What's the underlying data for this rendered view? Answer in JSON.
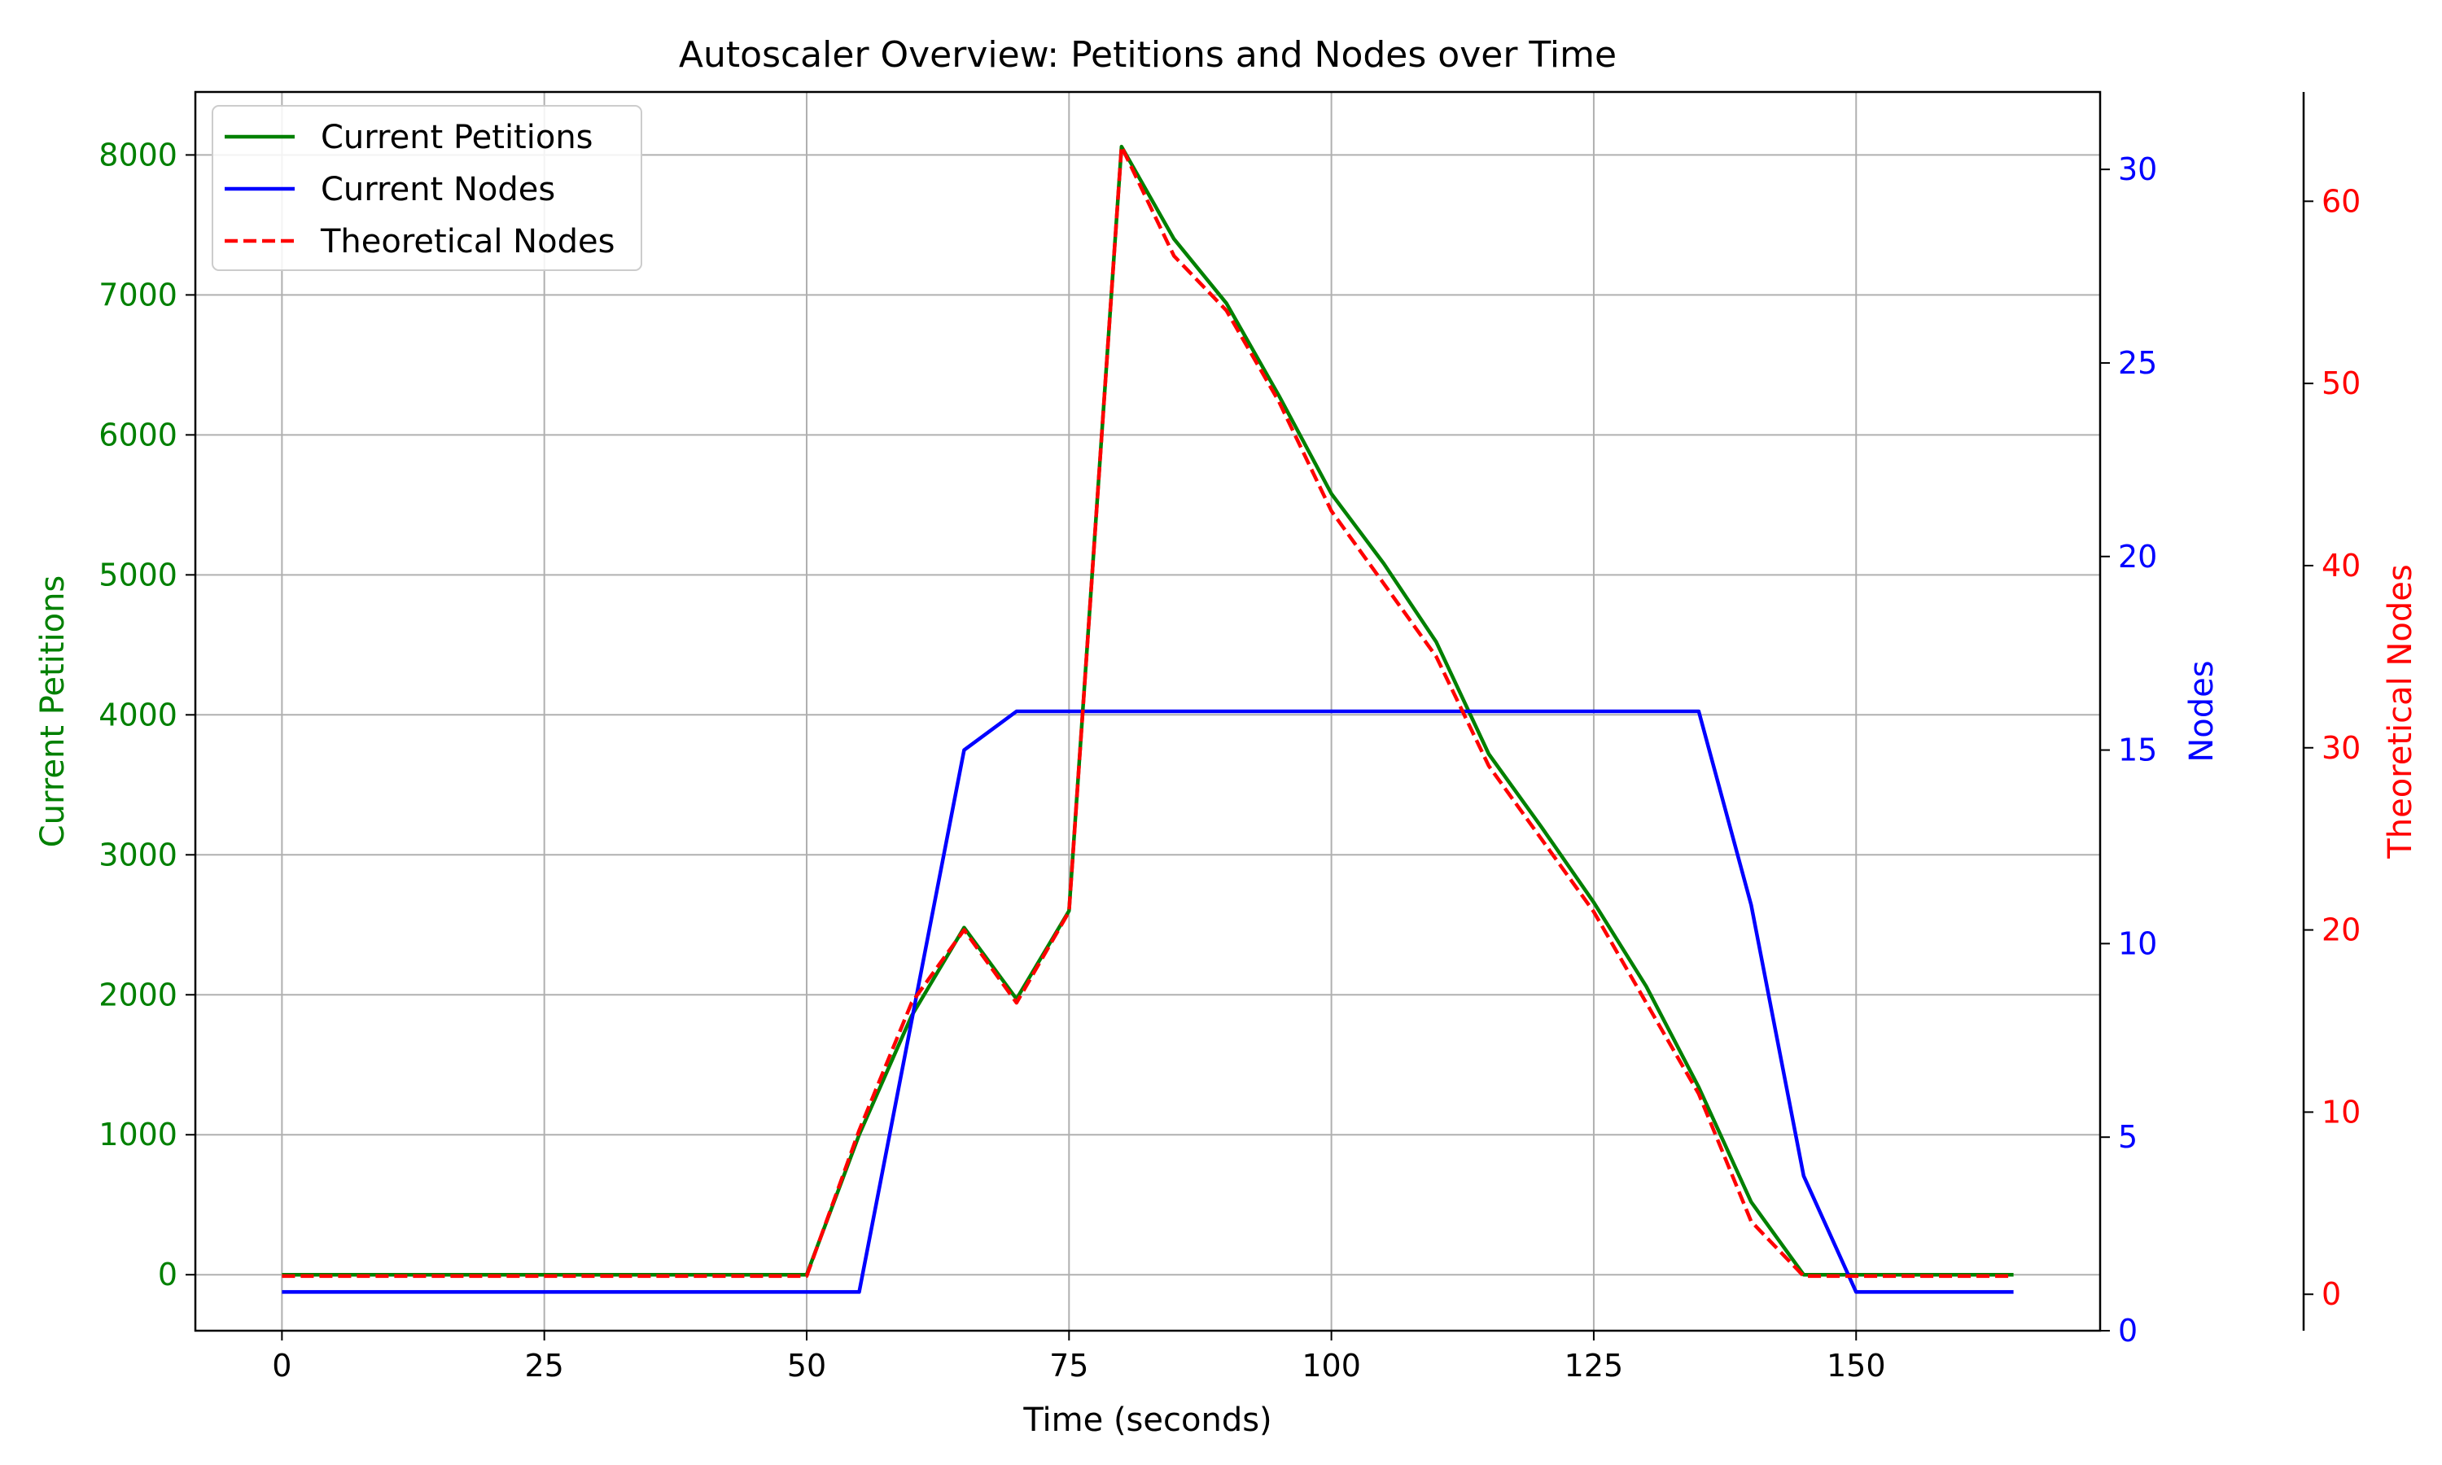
{
  "chart_data": {
    "type": "line",
    "title": "Autoscaler Overview: Petitions and Nodes over Time",
    "xlabel": "Time (seconds)",
    "xlim": [
      -8.25,
      173.25
    ],
    "xticks": [
      0,
      25,
      50,
      75,
      100,
      125,
      150
    ],
    "x": [
      0,
      5,
      10,
      15,
      20,
      25,
      30,
      35,
      40,
      45,
      50,
      55,
      60,
      65,
      70,
      75,
      80,
      85,
      90,
      95,
      100,
      105,
      110,
      115,
      120,
      125,
      130,
      135,
      140,
      145,
      150,
      155,
      160,
      165
    ],
    "grid": true,
    "legend": {
      "placement": "top-left"
    },
    "axes": [
      {
        "id": "petitions",
        "label": "Current Petitions",
        "color": "#008000",
        "side": "left",
        "ylim": [
          -400,
          8450
        ],
        "ticks": [
          0,
          1000,
          2000,
          3000,
          4000,
          5000,
          6000,
          7000,
          8000
        ]
      },
      {
        "id": "nodes",
        "label": "Nodes",
        "color": "#0000ff",
        "side": "right",
        "ylim": [
          0,
          32
        ],
        "ticks": [
          0,
          5,
          10,
          15,
          20,
          25,
          30
        ]
      },
      {
        "id": "theoretical",
        "label": "Theoretical Nodes",
        "color": "#ff0000",
        "side": "right-outer",
        "ylim": [
          -2,
          66
        ],
        "ticks": [
          0,
          10,
          20,
          30,
          40,
          50,
          60
        ]
      }
    ],
    "series": [
      {
        "name": "Current Petitions",
        "axis": "petitions",
        "color": "#008000",
        "style": "solid",
        "values": [
          0,
          0,
          0,
          0,
          0,
          0,
          0,
          0,
          0,
          0,
          0,
          1000,
          1850,
          2480,
          1970,
          2600,
          8060,
          7400,
          6940,
          6280,
          5580,
          5080,
          4520,
          3720,
          3200,
          2660,
          2060,
          1340,
          520,
          0,
          0,
          0,
          0,
          0
        ]
      },
      {
        "name": "Current Nodes",
        "axis": "nodes",
        "color": "#0000ff",
        "style": "solid",
        "values": [
          1,
          1,
          1,
          1,
          1,
          1,
          1,
          1,
          1,
          1,
          1,
          1,
          8,
          15,
          16,
          16,
          16,
          16,
          16,
          16,
          16,
          16,
          16,
          16,
          16,
          16,
          16,
          16,
          11,
          4,
          1,
          1,
          1,
          1
        ]
      },
      {
        "name": "Theoretical Nodes",
        "axis": "theoretical",
        "color": "#ff0000",
        "style": "dashed",
        "values": [
          1,
          1,
          1,
          1,
          1,
          1,
          1,
          1,
          1,
          1,
          1,
          9,
          16,
          20,
          16,
          21,
          63,
          57,
          54,
          49,
          43,
          39,
          35,
          29,
          25,
          21,
          16,
          11,
          4,
          1,
          1,
          1,
          1,
          1
        ]
      }
    ]
  }
}
